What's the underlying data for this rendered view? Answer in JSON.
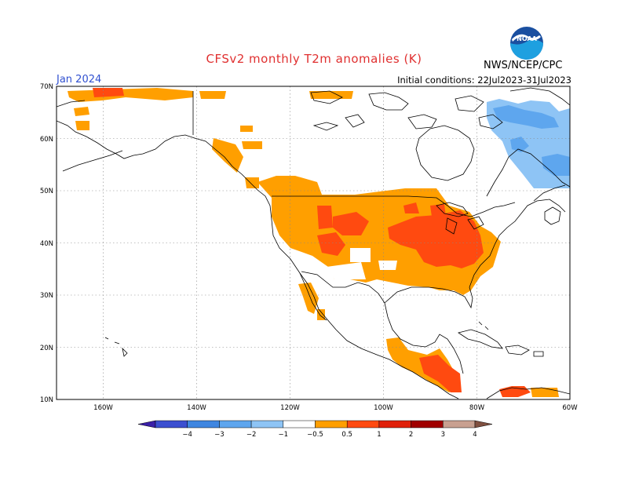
{
  "header": {
    "title": "CFSv2 monthly T2m anomalies (K)",
    "month": "Jan 2024",
    "initial_conditions": "Initial conditions: 22Jul2023-31Jul2023",
    "agency": "NWS/NCEP/CPC",
    "logo_text": "NOAA"
  },
  "map": {
    "lat_labels": [
      "70N",
      "60N",
      "50N",
      "40N",
      "30N",
      "20N",
      "10N"
    ],
    "lon_labels": [
      "160W",
      "140W",
      "120W",
      "100W",
      "80W",
      "60W"
    ],
    "lat_range": [
      10,
      70
    ],
    "lon_range": [
      -170,
      -60
    ]
  },
  "colorbar": {
    "labels": [
      "−4",
      "−3",
      "−2",
      "−1",
      "−0.5",
      "0.5",
      "1",
      "2",
      "3",
      "4"
    ],
    "colors": [
      "#3a1fa8",
      "#3b4fd0",
      "#3f86e0",
      "#5ea6ee",
      "#8ec4f5",
      "#ffffff",
      "#ff9f00",
      "#ff4a10",
      "#e0200a",
      "#a00000",
      "#c8a090",
      "#805040"
    ]
  }
}
